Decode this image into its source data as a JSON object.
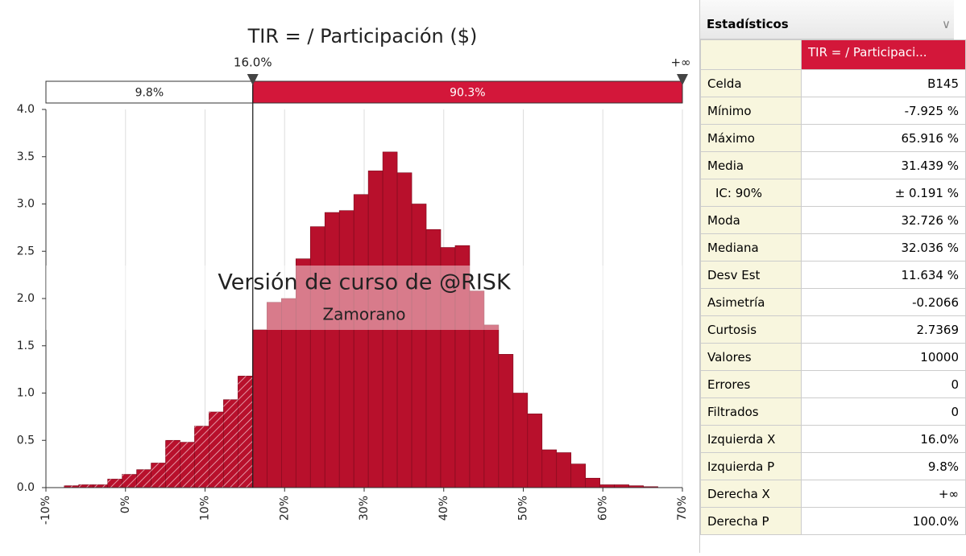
{
  "chart_data": {
    "type": "histogram",
    "title": "TIR = / Participación ($)",
    "bins": [
      -7.7,
      -5.88,
      -4.06,
      -2.24,
      -0.42,
      1.4,
      3.22,
      5.04,
      6.86,
      8.68,
      10.5,
      12.32,
      14.14,
      15.96,
      17.78,
      19.6,
      21.42,
      23.24,
      25.06,
      26.88,
      28.7,
      30.52,
      32.34,
      34.16,
      35.98,
      37.8,
      39.62,
      41.44,
      43.26,
      45.08,
      46.9,
      48.72,
      50.54,
      52.36,
      54.18,
      56.0,
      57.82,
      59.64,
      61.46,
      63.28,
      65.1,
      66.92
    ],
    "values": [
      0.02,
      0.03,
      0.03,
      0.09,
      0.14,
      0.19,
      0.26,
      0.5,
      0.48,
      0.65,
      0.8,
      0.93,
      1.18,
      1.67,
      1.96,
      2.0,
      2.42,
      2.76,
      2.91,
      2.93,
      3.1,
      3.35,
      3.55,
      3.33,
      3.0,
      2.73,
      2.54,
      2.56,
      2.08,
      1.72,
      1.41,
      1.0,
      0.78,
      0.4,
      0.37,
      0.25,
      0.1,
      0.03,
      0.03,
      0.02,
      0.01
    ],
    "color": "#b8102c",
    "xlim": [
      -10,
      70
    ],
    "ylim": [
      0,
      4
    ],
    "xticks": [
      {
        "value": -10,
        "label": "-10%"
      },
      {
        "value": 0,
        "label": "0%"
      },
      {
        "value": 10,
        "label": "10%"
      },
      {
        "value": 20,
        "label": "20%"
      },
      {
        "value": 30,
        "label": "30%"
      },
      {
        "value": 40,
        "label": "40%"
      },
      {
        "value": 50,
        "label": "50%"
      },
      {
        "value": 60,
        "label": "60%"
      },
      {
        "value": 70,
        "label": "70%"
      }
    ],
    "yticks": [
      {
        "value": 0,
        "label": "0.0"
      },
      0.5,
      {
        "value": 1,
        "label": "1.0"
      },
      1.5,
      {
        "value": 2,
        "label": "2.0"
      },
      2.5,
      {
        "value": 3,
        "label": "3.0"
      },
      3.5,
      {
        "value": 4,
        "label": "4.0"
      }
    ],
    "grid": "x",
    "delimiter": {
      "value": 16,
      "label": "16.0%"
    },
    "upper_delimiter_label": "+∞",
    "regions": {
      "values": [
        9.8,
        90.3
      ],
      "value_labels": [
        "9.8%",
        "90.3%"
      ]
    },
    "watermark": [
      "Versión de curso de @RISK",
      "Zamorano"
    ]
  },
  "statistics": {
    "title": "Estadísticos",
    "column_header": "TIR = / Participaci...",
    "rows": [
      [
        "Celda",
        "B145"
      ],
      [
        "Mínimo",
        "-7.925 %"
      ],
      [
        "Máximo",
        "65.916 %"
      ],
      [
        "Media",
        "31.439 %"
      ],
      [
        "IC: 90%",
        "± 0.191 %"
      ],
      [
        "Moda",
        "32.726 %"
      ],
      [
        "Mediana",
        "32.036 %"
      ],
      [
        "Desv Est",
        "11.634 %"
      ],
      [
        "Asimetría",
        "-0.2066"
      ],
      [
        "Curtosis",
        "2.7369"
      ],
      [
        "Valores",
        "10000"
      ],
      [
        "Errores",
        "0"
      ],
      [
        "Filtrados",
        "0"
      ],
      [
        "Izquierda X",
        "16.0%"
      ],
      [
        "Izquierda P",
        "9.8%"
      ],
      [
        "Derecha X",
        "+∞"
      ],
      [
        "Derecha P",
        "100.0%"
      ]
    ]
  }
}
